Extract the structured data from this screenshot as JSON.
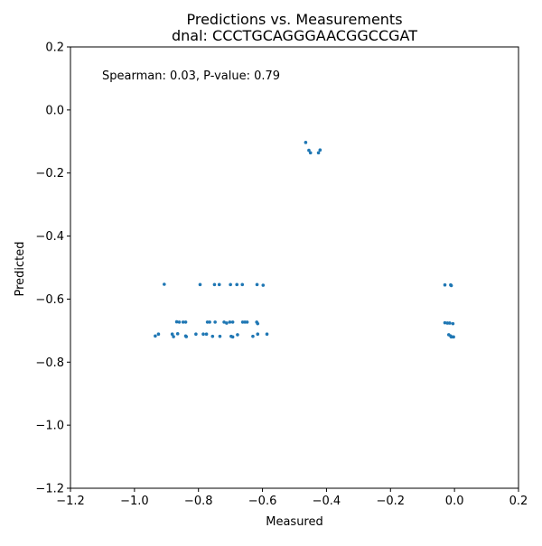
{
  "chart_data": {
    "type": "scatter",
    "title": "Predictions vs. Measurements",
    "subtitle": "dnal: CCCTGCAGGGAACGGCCGAT",
    "xlabel": "Measured",
    "ylabel": "Predicted",
    "xlim": [
      -1.2,
      0.2
    ],
    "ylim": [
      -1.2,
      0.2
    ],
    "xticks": [
      "−1.2",
      "−1.0",
      "−0.8",
      "−0.6",
      "−0.4",
      "−0.2",
      "0.0",
      "0.2"
    ],
    "yticks": [
      "−1.2",
      "−1.0",
      "−0.8",
      "−0.6",
      "−0.4",
      "−0.2",
      "0.0",
      "0.2"
    ],
    "xtick_values": [
      -1.2,
      -1.0,
      -0.8,
      -0.6,
      -0.4,
      -0.2,
      0.0,
      0.2
    ],
    "ytick_values": [
      -1.2,
      -1.0,
      -0.8,
      -0.6,
      -0.4,
      -0.2,
      0.0,
      0.2
    ],
    "annotation": "Spearman: 0.03, P-value: 0.79",
    "grid": false,
    "point_color": "#1f77b4",
    "series": [
      {
        "points": [
          [
            -0.465,
            -0.103
          ],
          [
            -0.455,
            -0.128
          ],
          [
            -0.45,
            -0.136
          ],
          [
            -0.425,
            -0.136
          ],
          [
            -0.42,
            -0.127
          ],
          [
            -0.907,
            -0.553
          ],
          [
            -0.795,
            -0.554
          ],
          [
            -0.75,
            -0.554
          ],
          [
            -0.735,
            -0.554
          ],
          [
            -0.7,
            -0.554
          ],
          [
            -0.68,
            -0.554
          ],
          [
            -0.663,
            -0.554
          ],
          [
            -0.617,
            -0.554
          ],
          [
            -0.598,
            -0.556
          ],
          [
            -0.03,
            -0.555
          ],
          [
            -0.012,
            -0.555
          ],
          [
            -0.01,
            -0.557
          ],
          [
            -0.868,
            -0.672
          ],
          [
            -0.86,
            -0.673
          ],
          [
            -0.848,
            -0.673
          ],
          [
            -0.84,
            -0.673
          ],
          [
            -0.772,
            -0.673
          ],
          [
            -0.765,
            -0.673
          ],
          [
            -0.748,
            -0.673
          ],
          [
            -0.72,
            -0.673
          ],
          [
            -0.712,
            -0.676
          ],
          [
            -0.702,
            -0.673
          ],
          [
            -0.693,
            -0.673
          ],
          [
            -0.662,
            -0.673
          ],
          [
            -0.655,
            -0.673
          ],
          [
            -0.648,
            -0.673
          ],
          [
            -0.618,
            -0.673
          ],
          [
            -0.615,
            -0.678
          ],
          [
            -0.03,
            -0.675
          ],
          [
            -0.022,
            -0.676
          ],
          [
            -0.015,
            -0.676
          ],
          [
            -0.005,
            -0.678
          ],
          [
            -0.935,
            -0.717
          ],
          [
            -0.925,
            -0.711
          ],
          [
            -0.882,
            -0.711
          ],
          [
            -0.878,
            -0.719
          ],
          [
            -0.865,
            -0.71
          ],
          [
            -0.84,
            -0.717
          ],
          [
            -0.838,
            -0.719
          ],
          [
            -0.808,
            -0.711
          ],
          [
            -0.785,
            -0.711
          ],
          [
            -0.775,
            -0.711
          ],
          [
            -0.756,
            -0.718
          ],
          [
            -0.733,
            -0.718
          ],
          [
            -0.698,
            -0.718
          ],
          [
            -0.693,
            -0.72
          ],
          [
            -0.678,
            -0.713
          ],
          [
            -0.63,
            -0.718
          ],
          [
            -0.615,
            -0.711
          ],
          [
            -0.586,
            -0.711
          ],
          [
            -0.018,
            -0.713
          ],
          [
            -0.012,
            -0.717
          ],
          [
            -0.01,
            -0.72
          ],
          [
            -0.003,
            -0.72
          ]
        ]
      }
    ]
  }
}
